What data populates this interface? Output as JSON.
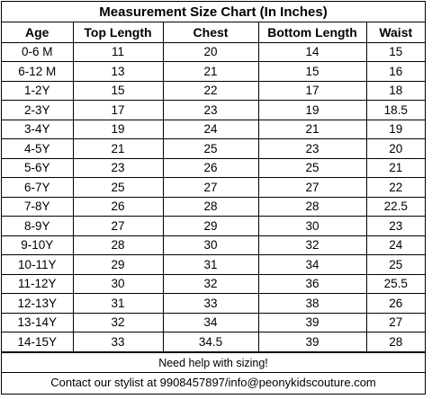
{
  "title": "Measurement Size Chart (In Inches)",
  "columns": [
    "Age",
    "Top Length",
    "Chest",
    "Bottom Length",
    "Waist"
  ],
  "rows": [
    [
      "0-6 M",
      "11",
      "20",
      "14",
      "15"
    ],
    [
      "6-12 M",
      "13",
      "21",
      "15",
      "16"
    ],
    [
      "1-2Y",
      "15",
      "22",
      "17",
      "18"
    ],
    [
      "2-3Y",
      "17",
      "23",
      "19",
      "18.5"
    ],
    [
      "3-4Y",
      "19",
      "24",
      "21",
      "19"
    ],
    [
      "4-5Y",
      "21",
      "25",
      "23",
      "20"
    ],
    [
      "5-6Y",
      "23",
      "26",
      "25",
      "21"
    ],
    [
      "6-7Y",
      "25",
      "27",
      "27",
      "22"
    ],
    [
      "7-8Y",
      "26",
      "28",
      "28",
      "22.5"
    ],
    [
      "8-9Y",
      "27",
      "29",
      "30",
      "23"
    ],
    [
      "9-10Y",
      "28",
      "30",
      "32",
      "24"
    ],
    [
      "10-11Y",
      "29",
      "31",
      "34",
      "25"
    ],
    [
      "11-12Y",
      "30",
      "32",
      "36",
      "25.5"
    ],
    [
      "12-13Y",
      "31",
      "33",
      "38",
      "26"
    ],
    [
      "13-14Y",
      "32",
      "34",
      "39",
      "27"
    ],
    [
      "14-15Y",
      "33",
      "34.5",
      "39",
      "28"
    ]
  ],
  "footer": {
    "help": "Need help with sizing!",
    "contact": "Contact our stylist at 9908457897/info@peonykidscouture.com"
  }
}
